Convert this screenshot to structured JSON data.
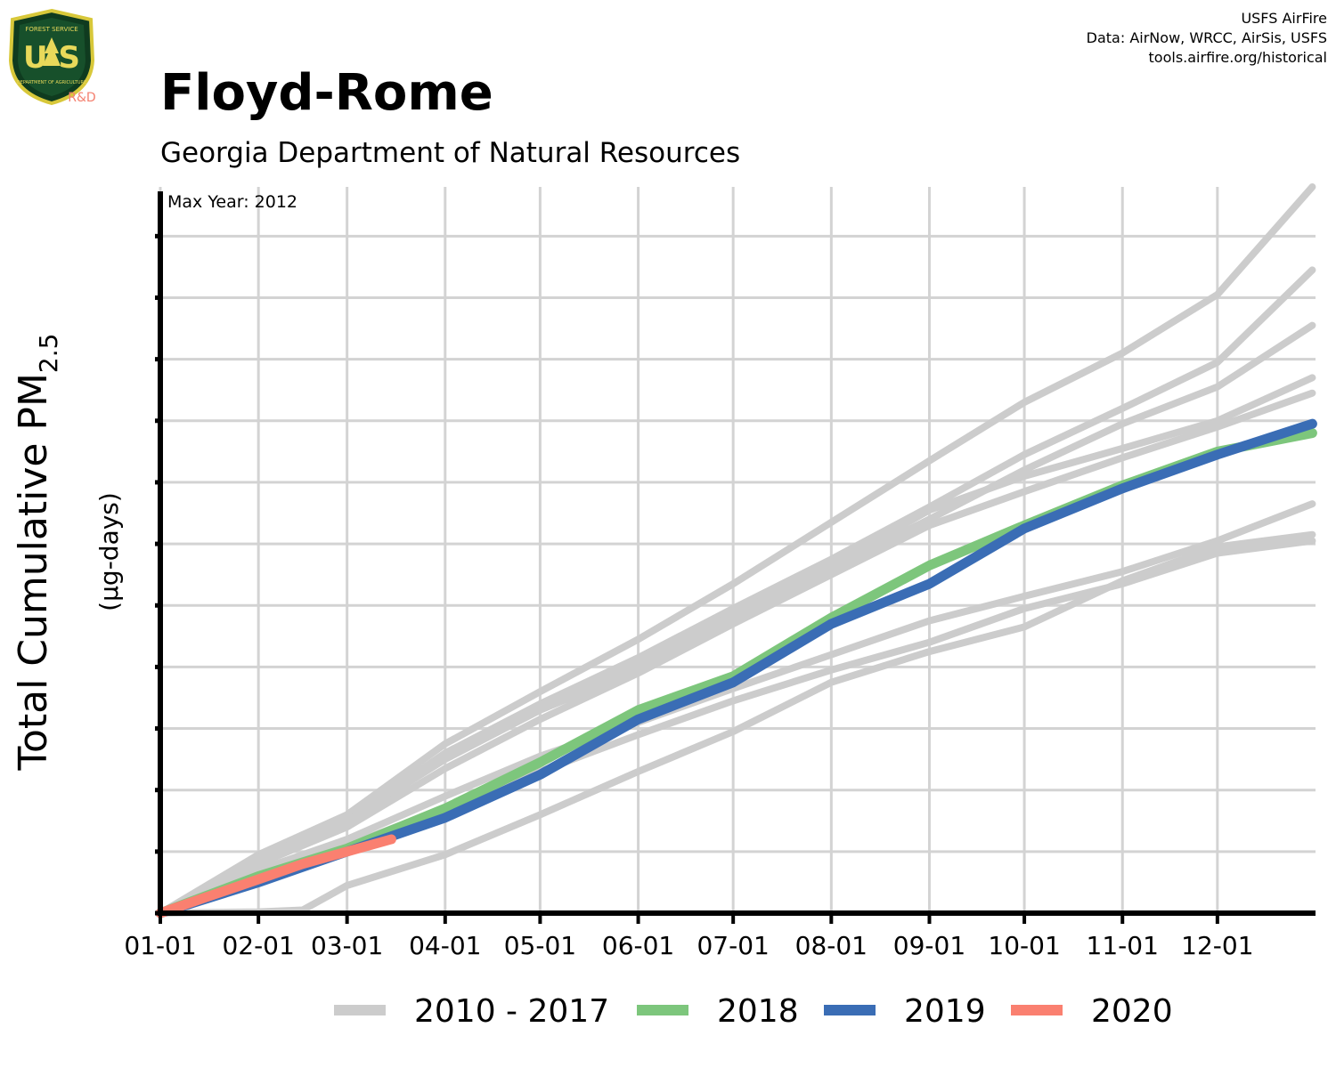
{
  "header": {
    "title": "Floyd-Rome",
    "subtitle": "Georgia Department of Natural Resources",
    "credits": [
      "USFS AirFire",
      "Data: AirNow, WRCC, AirSis, USFS",
      "tools.airfire.org/historical"
    ]
  },
  "logo": {
    "top_text": "FOREST SERVICE",
    "letters": "U S",
    "bottom_text": "DEPARTMENT OF AGRICULTURE",
    "rd_label": "R&D",
    "icon": "usfs-shield-icon"
  },
  "colors": {
    "background_years": "#cccccc",
    "y2018": "#7dc67c",
    "y2019": "#3a6db5",
    "y2020": "#fa8070",
    "grid": "#d3d3d3",
    "axis": "#000000"
  },
  "chart_data": {
    "type": "line",
    "annotation": "Max Year: 2012",
    "ylabel_main": "Total Cumulative PM",
    "ylabel_sub": "2.5",
    "ylabel_units": "(µg-days)",
    "xlabel": "",
    "x_unit": "day of year",
    "xlim": [
      1,
      366
    ],
    "ylim": [
      0,
      11.8
    ],
    "x_ticks": [
      {
        "day": 1,
        "label": "01-01"
      },
      {
        "day": 32,
        "label": "02-01"
      },
      {
        "day": 60,
        "label": "03-01"
      },
      {
        "day": 91,
        "label": "04-01"
      },
      {
        "day": 121,
        "label": "05-01"
      },
      {
        "day": 152,
        "label": "06-01"
      },
      {
        "day": 182,
        "label": "07-01"
      },
      {
        "day": 213,
        "label": "08-01"
      },
      {
        "day": 244,
        "label": "09-01"
      },
      {
        "day": 274,
        "label": "10-01"
      },
      {
        "day": 305,
        "label": "11-01"
      },
      {
        "day": 335,
        "label": "12-01"
      }
    ],
    "y_ticks": [
      0,
      1,
      2,
      3,
      4,
      5,
      6,
      7,
      8,
      9,
      10,
      11
    ],
    "y_tick_labels_shown": false,
    "grid": true,
    "legend_position": "bottom",
    "legend": [
      "2010 - 2017",
      "2018",
      "2019",
      "2020"
    ],
    "series": [
      {
        "name": "2010 - 2017",
        "group": "background",
        "points": [
          [
            1,
            0
          ],
          [
            32,
            0.95
          ],
          [
            60,
            1.6
          ],
          [
            91,
            2.75
          ],
          [
            121,
            3.6
          ],
          [
            152,
            4.45
          ],
          [
            182,
            5.35
          ],
          [
            213,
            6.35
          ],
          [
            244,
            7.35
          ],
          [
            274,
            8.3
          ],
          [
            305,
            9.1
          ],
          [
            335,
            10.05
          ],
          [
            365,
            11.8
          ]
        ]
      },
      {
        "group": "background",
        "points": [
          [
            1,
            0
          ],
          [
            32,
            0.9
          ],
          [
            60,
            1.5
          ],
          [
            91,
            2.6
          ],
          [
            121,
            3.4
          ],
          [
            152,
            4.15
          ],
          [
            182,
            4.95
          ],
          [
            213,
            5.75
          ],
          [
            244,
            6.6
          ],
          [
            274,
            7.45
          ],
          [
            305,
            8.2
          ],
          [
            335,
            8.95
          ],
          [
            365,
            10.45
          ]
        ]
      },
      {
        "group": "background",
        "points": [
          [
            1,
            0
          ],
          [
            32,
            0.85
          ],
          [
            60,
            1.45
          ],
          [
            91,
            2.55
          ],
          [
            121,
            3.3
          ],
          [
            152,
            3.95
          ],
          [
            182,
            4.75
          ],
          [
            213,
            5.6
          ],
          [
            244,
            6.4
          ],
          [
            274,
            7.2
          ],
          [
            305,
            7.95
          ],
          [
            335,
            8.55
          ],
          [
            365,
            9.55
          ]
        ]
      },
      {
        "group": "background",
        "points": [
          [
            1,
            0
          ],
          [
            32,
            0.9
          ],
          [
            60,
            1.5
          ],
          [
            91,
            2.5
          ],
          [
            121,
            3.3
          ],
          [
            152,
            4.05
          ],
          [
            182,
            4.85
          ],
          [
            213,
            5.65
          ],
          [
            244,
            6.55
          ],
          [
            274,
            7.1
          ],
          [
            305,
            7.55
          ],
          [
            335,
            8.0
          ],
          [
            365,
            8.7
          ]
        ]
      },
      {
        "group": "background",
        "points": [
          [
            1,
            0
          ],
          [
            32,
            0.8
          ],
          [
            60,
            1.4
          ],
          [
            91,
            2.35
          ],
          [
            121,
            3.15
          ],
          [
            152,
            3.9
          ],
          [
            182,
            4.7
          ],
          [
            213,
            5.5
          ],
          [
            244,
            6.3
          ],
          [
            274,
            6.85
          ],
          [
            305,
            7.4
          ],
          [
            335,
            7.9
          ],
          [
            365,
            8.45
          ]
        ]
      },
      {
        "group": "background",
        "points": [
          [
            1,
            0
          ],
          [
            32,
            0.7
          ],
          [
            60,
            1.2
          ],
          [
            91,
            1.9
          ],
          [
            121,
            2.55
          ],
          [
            152,
            3.1
          ],
          [
            182,
            3.65
          ],
          [
            213,
            4.2
          ],
          [
            244,
            4.75
          ],
          [
            274,
            5.15
          ],
          [
            305,
            5.55
          ],
          [
            335,
            6.05
          ],
          [
            365,
            6.65
          ]
        ]
      },
      {
        "group": "background",
        "points": [
          [
            1,
            0
          ],
          [
            32,
            0.6
          ],
          [
            60,
            1.1
          ],
          [
            91,
            1.7
          ],
          [
            121,
            2.3
          ],
          [
            152,
            2.9
          ],
          [
            182,
            3.45
          ],
          [
            213,
            3.95
          ],
          [
            244,
            4.4
          ],
          [
            274,
            4.95
          ],
          [
            305,
            5.35
          ],
          [
            335,
            5.85
          ],
          [
            365,
            6.05
          ]
        ]
      },
      {
        "group": "background",
        "points": [
          [
            1,
            0
          ],
          [
            32,
            0.02
          ],
          [
            46,
            0.05
          ],
          [
            60,
            0.45
          ],
          [
            91,
            0.95
          ],
          [
            121,
            1.6
          ],
          [
            152,
            2.3
          ],
          [
            182,
            2.95
          ],
          [
            213,
            3.75
          ],
          [
            244,
            4.25
          ],
          [
            274,
            4.65
          ],
          [
            305,
            5.4
          ],
          [
            335,
            5.95
          ],
          [
            365,
            6.15
          ]
        ]
      },
      {
        "name": "2018",
        "group": "y2018",
        "points": [
          [
            1,
            0
          ],
          [
            32,
            0.6
          ],
          [
            60,
            1.05
          ],
          [
            91,
            1.7
          ],
          [
            121,
            2.45
          ],
          [
            152,
            3.3
          ],
          [
            182,
            3.85
          ],
          [
            213,
            4.8
          ],
          [
            244,
            5.65
          ],
          [
            274,
            6.3
          ],
          [
            305,
            6.95
          ],
          [
            335,
            7.5
          ],
          [
            365,
            7.8
          ]
        ]
      },
      {
        "name": "2019",
        "group": "y2019",
        "points": [
          [
            1,
            0
          ],
          [
            32,
            0.5
          ],
          [
            60,
            1.0
          ],
          [
            91,
            1.55
          ],
          [
            121,
            2.25
          ],
          [
            152,
            3.15
          ],
          [
            182,
            3.75
          ],
          [
            213,
            4.7
          ],
          [
            244,
            5.35
          ],
          [
            274,
            6.25
          ],
          [
            305,
            6.9
          ],
          [
            335,
            7.45
          ],
          [
            365,
            7.95
          ]
        ]
      },
      {
        "name": "2020",
        "group": "y2020",
        "points": [
          [
            1,
            0
          ],
          [
            15,
            0.25
          ],
          [
            32,
            0.55
          ],
          [
            46,
            0.8
          ],
          [
            60,
            1.0
          ],
          [
            74,
            1.2
          ]
        ]
      }
    ]
  }
}
